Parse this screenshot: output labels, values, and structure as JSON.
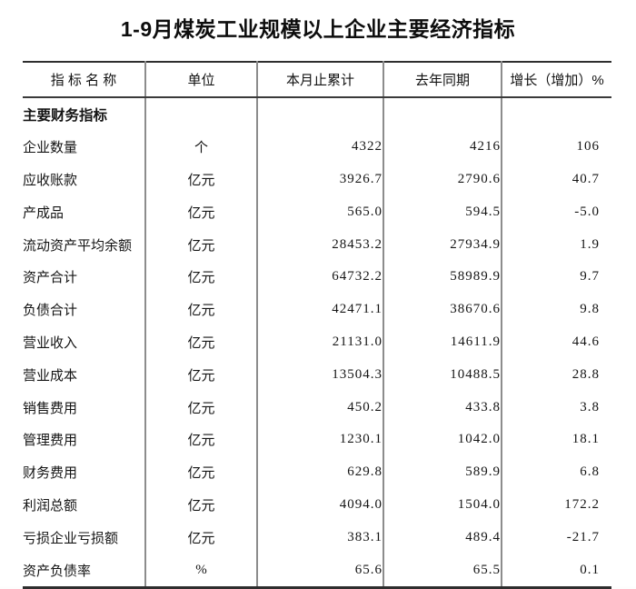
{
  "title": "1-9月煤炭工业规模以上企业主要经济指标",
  "table": {
    "columns": [
      "指 标 名 称",
      "单位",
      "本月止累计",
      "去年同期",
      "增长（增加）%"
    ],
    "rows": [
      {
        "name": "主要财务指标",
        "unit": "",
        "current": "",
        "last_year": "",
        "growth": "",
        "section": true
      },
      {
        "name": "企业数量",
        "unit": "个",
        "current": "4322",
        "last_year": "4216",
        "growth": "106"
      },
      {
        "name": "应收账款",
        "unit": "亿元",
        "current": "3926.7",
        "last_year": "2790.6",
        "growth": "40.7"
      },
      {
        "name": "产成品",
        "unit": "亿元",
        "current": "565.0",
        "last_year": "594.5",
        "growth": "-5.0"
      },
      {
        "name": "流动资产平均余额",
        "unit": "亿元",
        "current": "28453.2",
        "last_year": "27934.9",
        "growth": "1.9"
      },
      {
        "name": "资产合计",
        "unit": "亿元",
        "current": "64732.2",
        "last_year": "58989.9",
        "growth": "9.7"
      },
      {
        "name": "负债合计",
        "unit": "亿元",
        "current": "42471.1",
        "last_year": "38670.6",
        "growth": "9.8"
      },
      {
        "name": "营业收入",
        "unit": "亿元",
        "current": "21131.0",
        "last_year": "14611.9",
        "growth": "44.6"
      },
      {
        "name": "营业成本",
        "unit": "亿元",
        "current": "13504.3",
        "last_year": "10488.5",
        "growth": "28.8"
      },
      {
        "name": "销售费用",
        "unit": "亿元",
        "current": "450.2",
        "last_year": "433.8",
        "growth": "3.8"
      },
      {
        "name": "管理费用",
        "unit": "亿元",
        "current": "1230.1",
        "last_year": "1042.0",
        "growth": "18.1"
      },
      {
        "name": "财务费用",
        "unit": "亿元",
        "current": "629.8",
        "last_year": "589.9",
        "growth": "6.8"
      },
      {
        "name": "利润总额",
        "unit": "亿元",
        "current": "4094.0",
        "last_year": "1504.0",
        "growth": "172.2"
      },
      {
        "name": "亏损企业亏损额",
        "unit": "亿元",
        "current": "383.1",
        "last_year": "489.4",
        "growth": "-21.7"
      },
      {
        "name": "资产负债率",
        "unit": "%",
        "current": "65.6",
        "last_year": "65.5",
        "growth": "0.1"
      }
    ]
  },
  "colors": {
    "text": "#141414",
    "rule_dark": "#2e2e2e",
    "rule_gray": "#8c8c8c",
    "background": "#ffffff"
  }
}
